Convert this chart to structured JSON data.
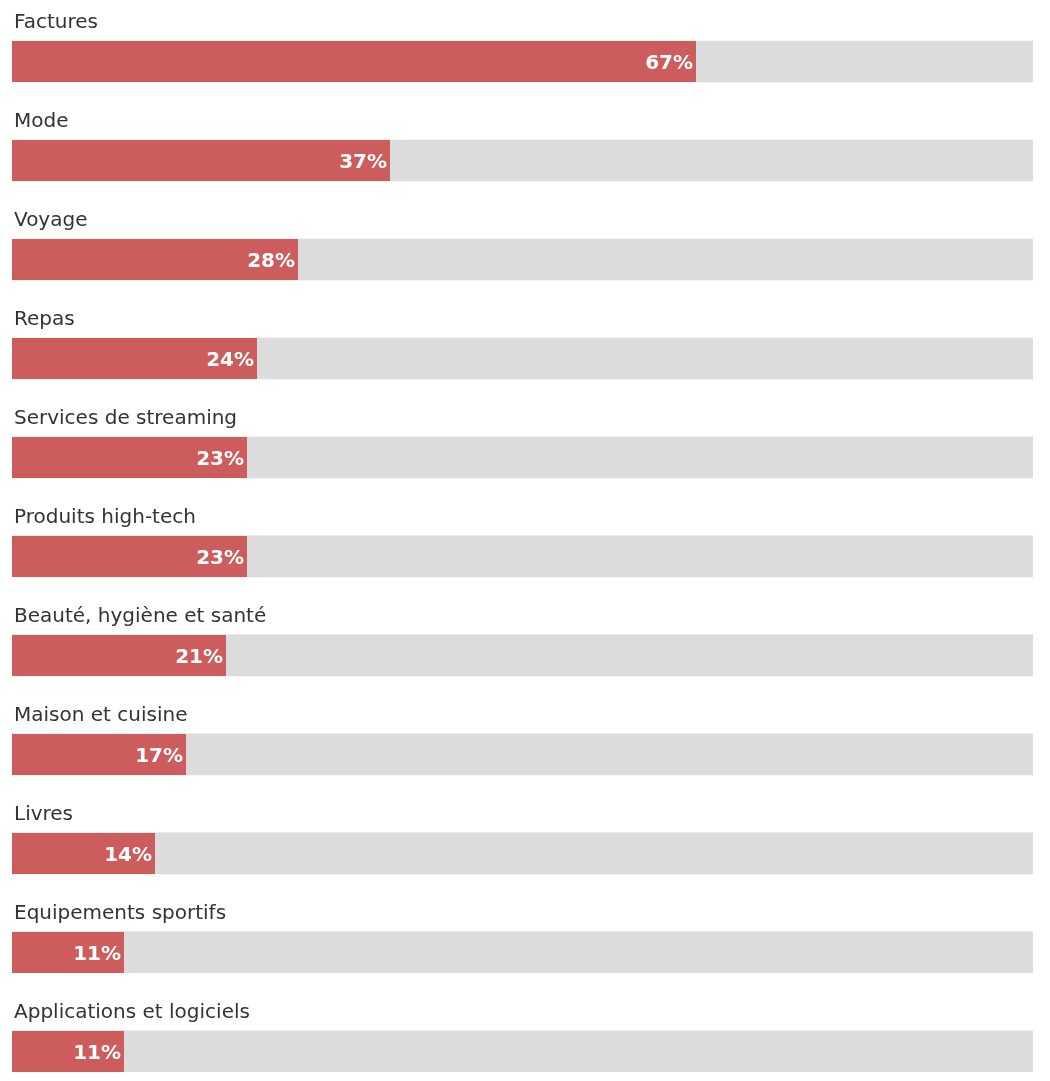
{
  "chart_data": {
    "type": "bar",
    "orientation": "horizontal",
    "categories": [
      "Factures",
      "Mode",
      "Voyage",
      "Repas",
      "Services de streaming",
      "Produits high-tech",
      "Beauté, hygiène et santé",
      "Maison et cuisine",
      "Livres",
      "Equipements sportifs",
      "Applications et logiciels"
    ],
    "values": [
      67,
      37,
      28,
      24,
      23,
      23,
      21,
      17,
      14,
      11,
      11
    ],
    "value_labels": [
      "67%",
      "37%",
      "28%",
      "24%",
      "23%",
      "23%",
      "21%",
      "17%",
      "14%",
      "11%",
      "11%"
    ],
    "color": "#cd5c5c",
    "xlim": [
      0,
      100
    ],
    "tick_labels": "y",
    "grid": false
  }
}
